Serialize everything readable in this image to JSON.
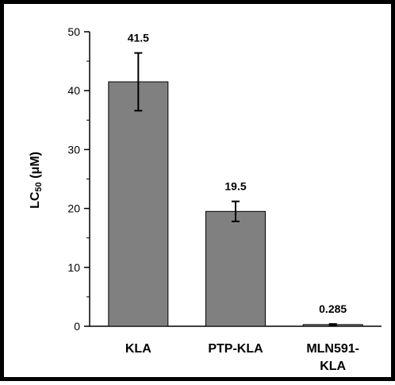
{
  "chart_data": {
    "type": "bar",
    "categories": [
      [
        "KLA"
      ],
      [
        "PTP-KLA"
      ],
      [
        "MLN591-",
        "KLA"
      ]
    ],
    "values": [
      41.5,
      19.5,
      0.285
    ],
    "data_labels": [
      "41.5",
      "19.5",
      "0.285"
    ],
    "error_bars": [
      4.9,
      1.7,
      0.1
    ],
    "ylabel": {
      "main": "LC",
      "sub": "50",
      "unit": " (μM)"
    },
    "ylim": [
      0,
      50
    ],
    "yticks": [
      0,
      10,
      20,
      30,
      40,
      50
    ],
    "bar_color": "#808080",
    "grid": false,
    "legend": false
  }
}
